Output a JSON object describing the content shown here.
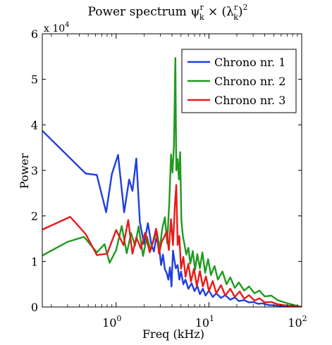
{
  "chart_data": {
    "type": "line",
    "title": "Power spectrum ψ_k^r × (λ_k^r)^2",
    "title_parts": {
      "prefix": "Power spectrum ",
      "psi": "ψ",
      "psi_sup": "r",
      "psi_sub": "k",
      "times": " × (",
      "lambda": "λ",
      "lambda_sup": "r",
      "lambda_sub": "k",
      "close": ")",
      "power": "2"
    },
    "xlabel": "Freq (kHz)",
    "ylabel": "Power",
    "x_scale": "log",
    "xlim": [
      0.16,
      100
    ],
    "ylim": [
      0,
      60000
    ],
    "y_multiplier_label": {
      "base": "x 10",
      "exp": "4"
    },
    "x_ticks": [
      {
        "value": 1,
        "base": "10",
        "exp": "0"
      },
      {
        "value": 10,
        "base": "10",
        "exp": "1"
      },
      {
        "value": 100,
        "base": "10",
        "exp": "2"
      }
    ],
    "y_ticks": [
      {
        "value": 0,
        "label": "0"
      },
      {
        "value": 10000,
        "label": "1"
      },
      {
        "value": 20000,
        "label": "2"
      },
      {
        "value": 30000,
        "label": "3"
      },
      {
        "value": 40000,
        "label": "4"
      },
      {
        "value": 50000,
        "label": "5"
      },
      {
        "value": 60000,
        "label": "6"
      }
    ],
    "grid": false,
    "legend_position": "top-right",
    "series": [
      {
        "name": "Chrono nr. 1",
        "color": "#1f3fe0",
        "x": [
          0.16,
          0.47,
          0.62,
          0.78,
          0.9,
          1.05,
          1.22,
          1.38,
          1.5,
          1.65,
          1.8,
          2.0,
          2.2,
          2.4,
          2.55,
          2.7,
          2.9,
          3.05,
          3.2,
          3.35,
          3.5,
          3.65,
          3.8,
          3.95,
          4.1,
          4.25,
          4.4,
          4.6,
          4.8,
          5.0,
          5.3,
          5.6,
          6.0,
          6.5,
          7.0,
          7.5,
          8.0,
          8.6,
          9.2,
          10,
          11,
          12,
          13.5,
          15,
          17,
          19,
          21,
          24,
          27,
          30,
          34,
          38,
          43,
          50,
          60,
          75,
          100
        ],
        "y": [
          38700,
          29300,
          29000,
          20800,
          29200,
          33400,
          20800,
          28000,
          25500,
          32600,
          18700,
          13800,
          18400,
          13700,
          12200,
          15000,
          13500,
          9200,
          11500,
          8300,
          7500,
          6000,
          8700,
          4500,
          12400,
          10200,
          8500,
          9200,
          6000,
          7800,
          5000,
          6000,
          4000,
          5200,
          3500,
          4600,
          2800,
          4000,
          2500,
          3600,
          2200,
          3000,
          2000,
          2600,
          1600,
          2100,
          1300,
          1500,
          1000,
          1100,
          700,
          800,
          450,
          350,
          200,
          100,
          0
        ]
      },
      {
        "name": "Chrono nr. 2",
        "color": "#1f9a1f",
        "x": [
          0.16,
          0.3,
          0.45,
          0.62,
          0.75,
          0.85,
          1.0,
          1.15,
          1.3,
          1.45,
          1.6,
          1.75,
          1.95,
          2.15,
          2.35,
          2.55,
          2.75,
          2.95,
          3.15,
          3.35,
          3.55,
          3.75,
          3.9,
          4.05,
          4.2,
          4.35,
          4.45,
          4.6,
          4.75,
          4.9,
          5.05,
          5.25,
          5.45,
          5.7,
          6.0,
          6.3,
          6.7,
          7.1,
          7.5,
          8.0,
          8.5,
          9.1,
          9.8,
          10.5,
          11.5,
          12.5,
          14,
          15.5,
          17,
          19,
          21,
          24,
          27,
          31,
          35,
          40,
          47,
          55,
          65,
          80,
          100
        ],
        "y": [
          11300,
          14300,
          15400,
          12000,
          13800,
          9700,
          12500,
          17800,
          11800,
          16200,
          13500,
          17700,
          11200,
          15500,
          12400,
          14800,
          16500,
          12700,
          17300,
          19700,
          14000,
          23500,
          33500,
          29500,
          35500,
          54700,
          30000,
          32500,
          28000,
          34000,
          19000,
          15500,
          13800,
          11500,
          13000,
          9500,
          12300,
          8200,
          11600,
          8500,
          12000,
          7500,
          10500,
          7000,
          9000,
          6000,
          7800,
          5000,
          6500,
          4200,
          5400,
          3600,
          4500,
          3000,
          3600,
          2300,
          2500,
          1500,
          1000,
          500,
          0
        ]
      },
      {
        "name": "Chrono nr. 3",
        "color": "#e81a1a",
        "x": [
          0.16,
          0.32,
          0.47,
          0.62,
          0.8,
          1.0,
          1.2,
          1.35,
          1.5,
          1.65,
          1.85,
          2.05,
          2.3,
          2.5,
          2.7,
          2.9,
          3.1,
          3.3,
          3.5,
          3.7,
          3.9,
          4.1,
          4.3,
          4.45,
          4.6,
          4.8,
          5.0,
          5.3,
          5.6,
          6.0,
          6.4,
          6.9,
          7.4,
          8.0,
          8.6,
          9.3,
          10,
          11,
          12,
          13.5,
          15,
          17,
          19,
          21.5,
          24,
          27,
          31,
          35,
          40,
          47,
          55,
          65,
          80,
          100
        ],
        "y": [
          17000,
          19800,
          16000,
          11400,
          11700,
          16900,
          13600,
          19100,
          11700,
          15300,
          12800,
          16300,
          12000,
          14400,
          17200,
          11700,
          14300,
          15400,
          16600,
          12500,
          19300,
          13600,
          22300,
          26800,
          13600,
          15600,
          8400,
          11000,
          6600,
          9500,
          5600,
          8400,
          4600,
          7900,
          4500,
          6700,
          3500,
          5700,
          3000,
          4800,
          2500,
          4000,
          2200,
          3400,
          1800,
          2600,
          1400,
          1900,
          1000,
          1100,
          600,
          400,
          200,
          0
        ]
      }
    ]
  }
}
